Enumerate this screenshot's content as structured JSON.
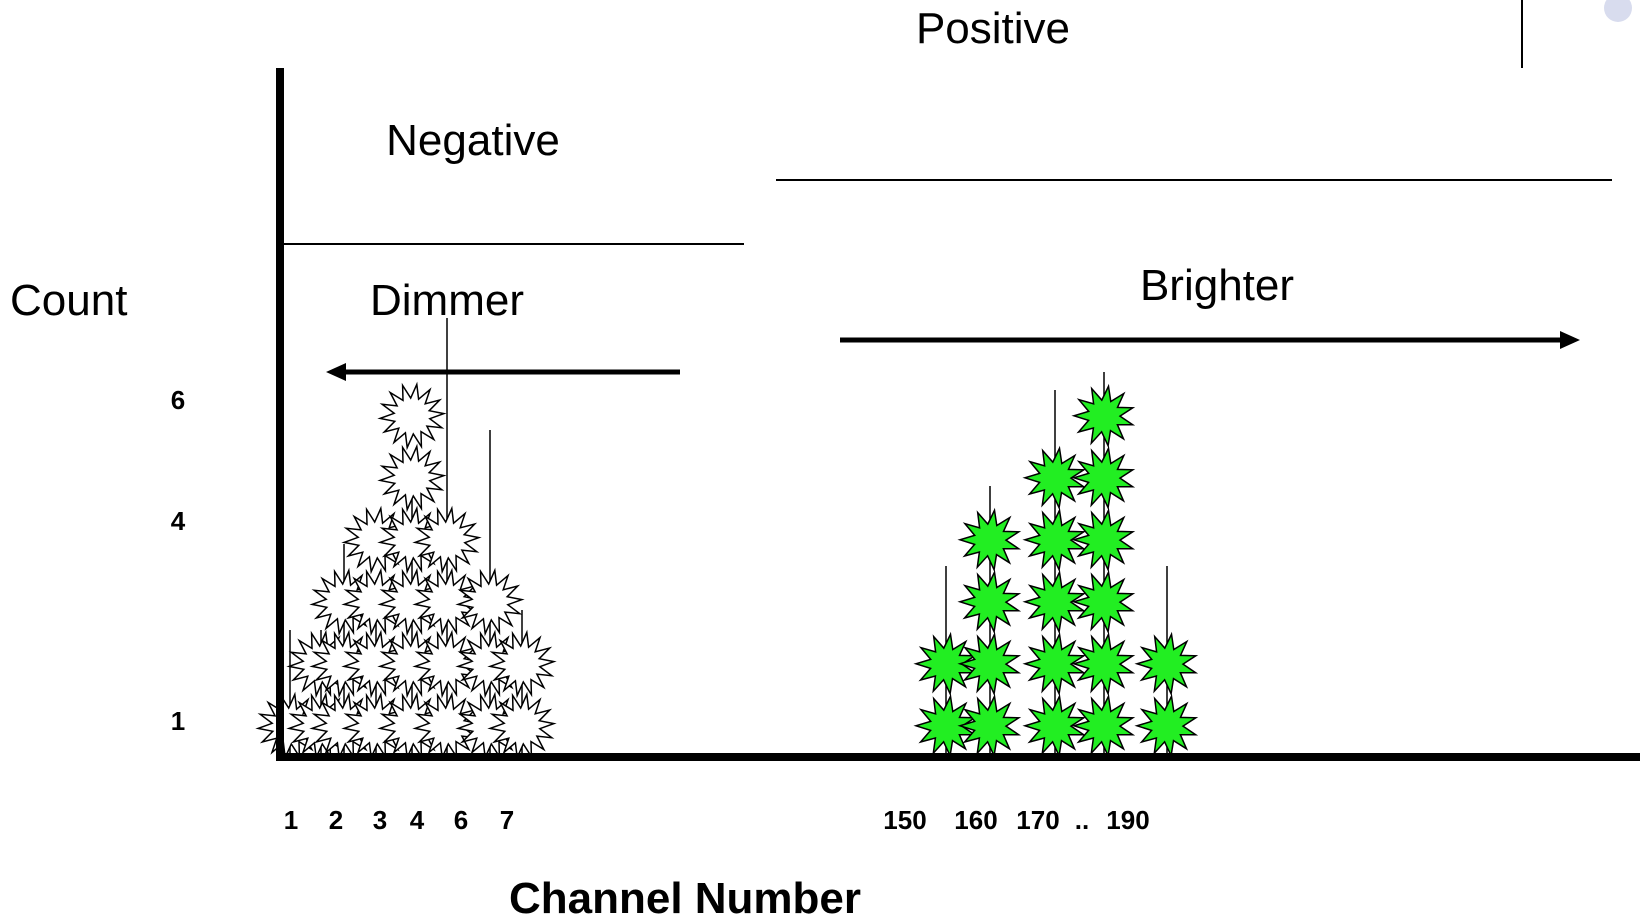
{
  "labels": {
    "positive": "Positive",
    "negative": "Negative",
    "dimmer": "Dimmer",
    "brighter": "Brighter",
    "count": "Count",
    "x_axis_title": "Channel Number"
  },
  "y_ticks": [
    "6",
    "4",
    "1"
  ],
  "x_ticks_negative": [
    "1",
    "2",
    "3",
    "4",
    "6",
    "7"
  ],
  "x_ticks_positive": [
    "150",
    "160",
    "170",
    "..",
    "190"
  ],
  "colors": {
    "negative_event_fill": "#ffffff",
    "positive_event_fill": "#22ee22",
    "stroke": "#000000",
    "slide_dot": "#d8dcee"
  },
  "icons": {
    "event_marker": "starburst-icon",
    "dimmer_arrow": "arrow-left-icon",
    "brighter_arrow": "arrow-right-icon"
  },
  "histogram": {
    "negative_counts": [
      1,
      2,
      3,
      4,
      6,
      4,
      3,
      2
    ],
    "positive_counts": [
      2,
      4,
      5,
      6,
      2
    ]
  }
}
